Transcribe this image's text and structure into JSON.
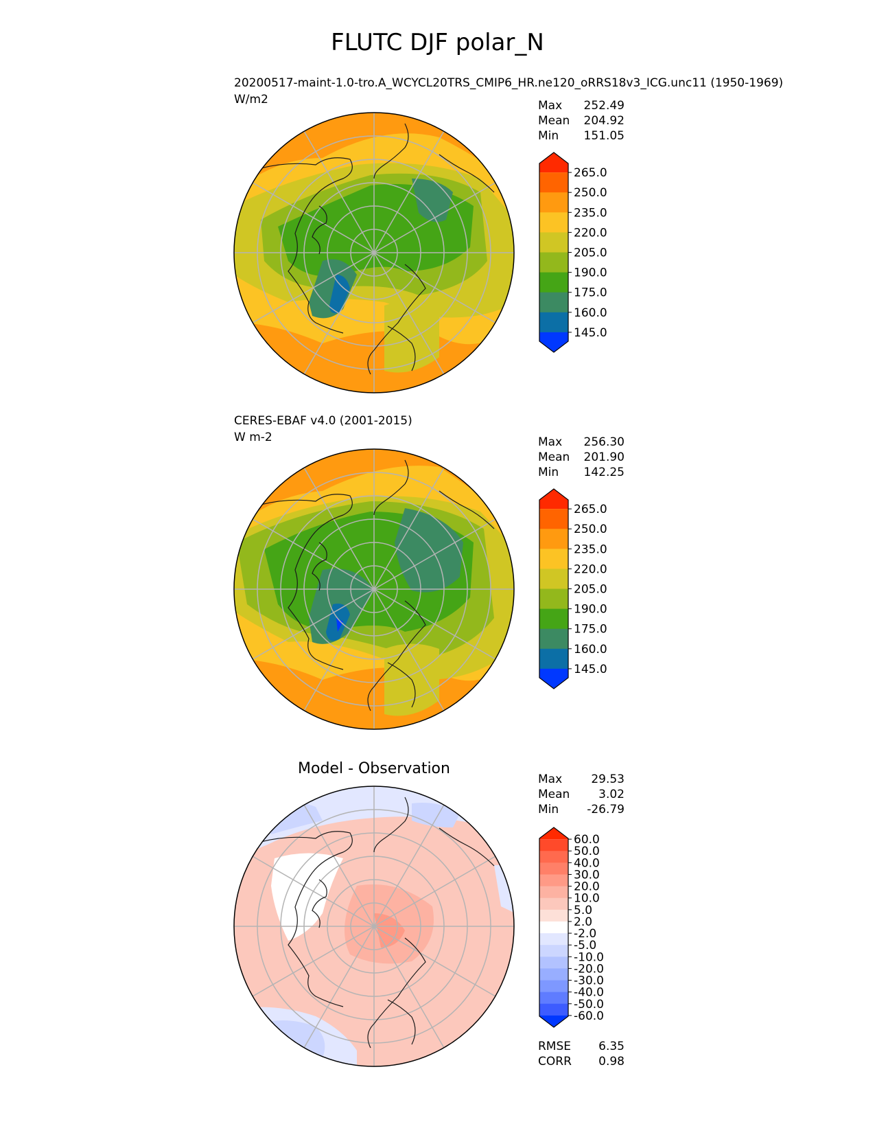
{
  "figure": {
    "title": "FLUTC DJF polar_N"
  },
  "panels": [
    {
      "title": "20200517-maint-1.0-tro.A_WCYCL20TRS_CMIP6_HR.ne120_oRRS18v3_ICG.unc11 (1950-1969)",
      "units": "W/m2",
      "stats": [
        {
          "label": "Max",
          "value": "252.49"
        },
        {
          "label": "Mean",
          "value": "204.92"
        },
        {
          "label": "Min",
          "value": "151.05"
        }
      ]
    },
    {
      "title": "CERES-EBAF v4.0 (2001-2015)",
      "units": "W m-2",
      "stats": [
        {
          "label": "Max",
          "value": "256.30"
        },
        {
          "label": "Mean",
          "value": "201.90"
        },
        {
          "label": "Min",
          "value": "142.25"
        }
      ]
    },
    {
      "title": "Model - Observation",
      "stats": [
        {
          "label": "Max",
          "value": "29.53"
        },
        {
          "label": "Mean",
          "value": "3.02"
        },
        {
          "label": "Min",
          "value": "-26.79"
        }
      ],
      "metrics": [
        {
          "label": "RMSE",
          "value": "6.35"
        },
        {
          "label": "CORR",
          "value": "0.98"
        }
      ]
    }
  ],
  "colorbars": {
    "field": {
      "labels": [
        "265.0",
        "250.0",
        "235.0",
        "220.0",
        "205.0",
        "190.0",
        "175.0",
        "160.0",
        "145.0"
      ],
      "colors_top_to_bottom": [
        "#ff2a00",
        "#ff6400",
        "#ff9a10",
        "#fcc324",
        "#d0c624",
        "#93b81c",
        "#45a516",
        "#3c8a62",
        "#0c6fa6",
        "#0038ff"
      ]
    },
    "diff": {
      "labels": [
        "60.0",
        "50.0",
        "40.0",
        "30.0",
        "20.0",
        "10.0",
        "5.0",
        "2.0",
        "-2.0",
        "-5.0",
        "-10.0",
        "-20.0",
        "-30.0",
        "-40.0",
        "-50.0",
        "-60.0"
      ],
      "colors_top_to_bottom": [
        "#ff2a00",
        "#ff4a2a",
        "#ff6a4e",
        "#ff8068",
        "#ff9a86",
        "#fdb2a2",
        "#fcc8bc",
        "#fde0d8",
        "#ffffff",
        "#e2e7ff",
        "#ccd6ff",
        "#b2c2ff",
        "#98aeff",
        "#7e98ff",
        "#5f7cff",
        "#3d5cff",
        "#0038ff"
      ]
    }
  }
}
